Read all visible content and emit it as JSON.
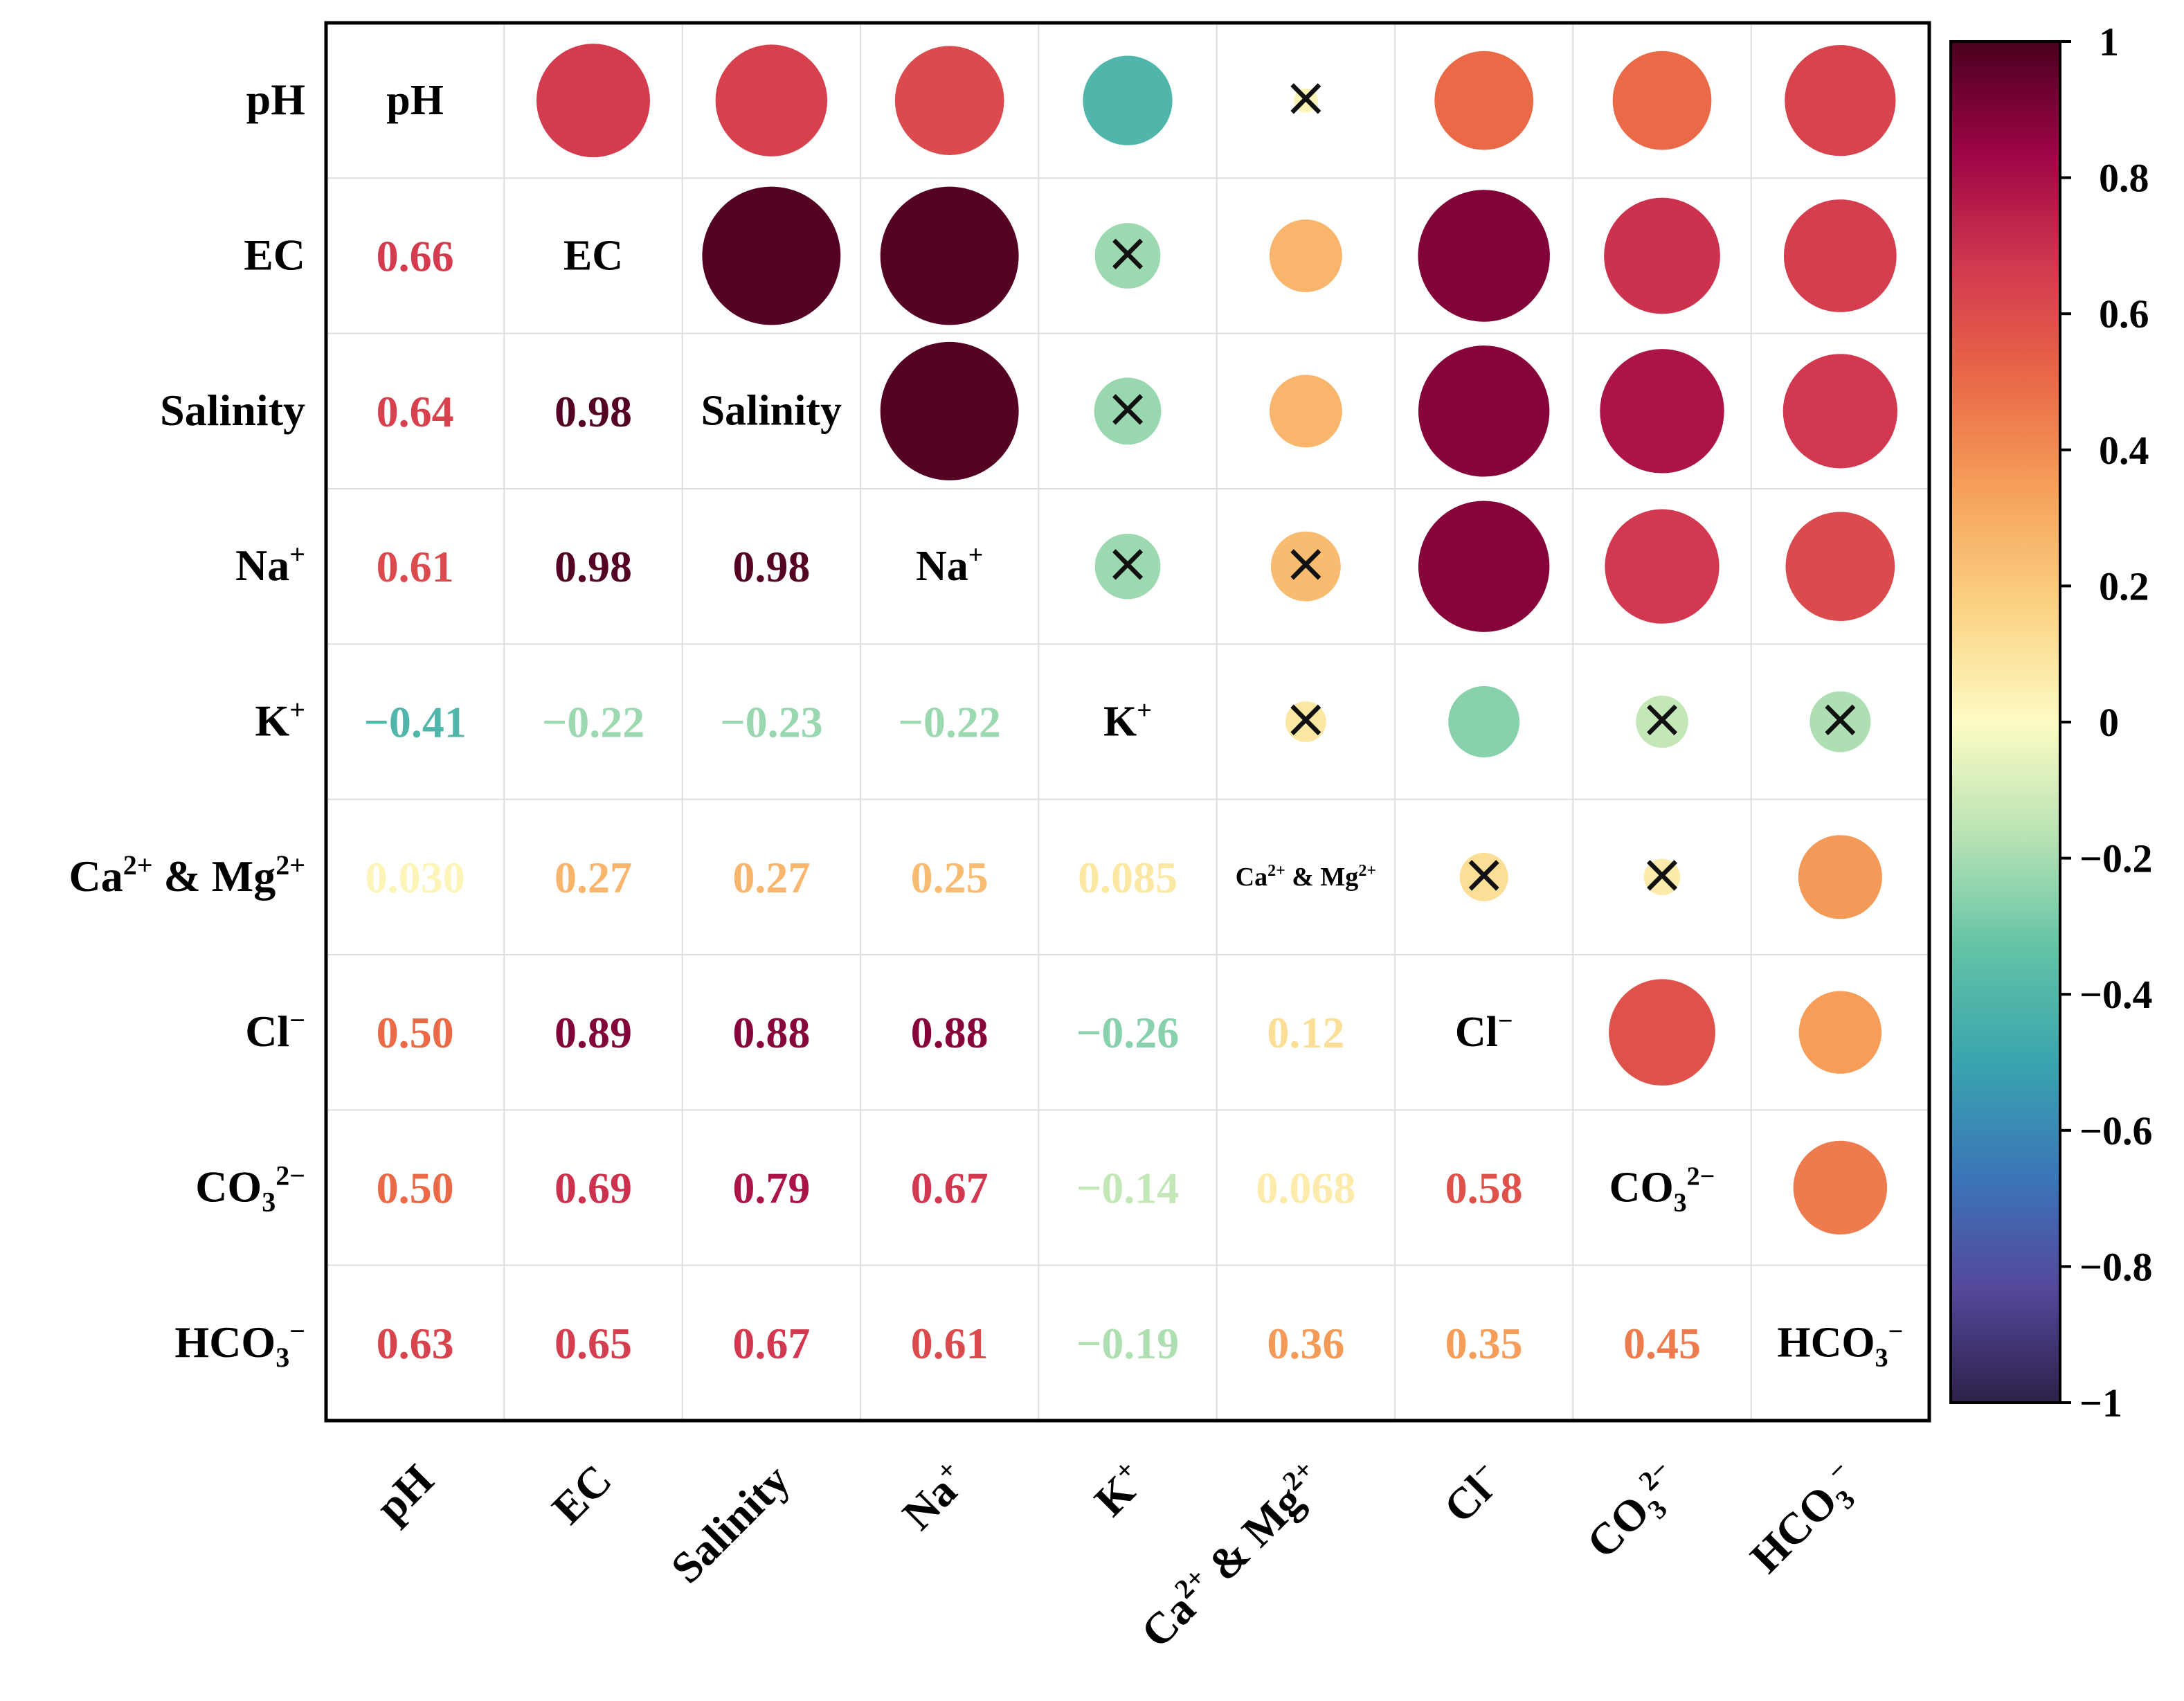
{
  "chart_data": {
    "type": "heatmap",
    "style": "correlation-matrix (lower: coefficients, upper: circles, diagonal: variable names, x = not significant)",
    "variables": [
      {
        "base": "pH",
        "sup": "",
        "sub": "",
        "sub_sup": ""
      },
      {
        "base": "EC",
        "sup": "",
        "sub": "",
        "sub_sup": ""
      },
      {
        "base": "Salinity",
        "sup": "",
        "sub": "",
        "sub_sup": ""
      },
      {
        "base": "Na",
        "sup": "+",
        "sub": "",
        "sub_sup": ""
      },
      {
        "base": "K",
        "sup": "+",
        "sub": "",
        "sub_sup": ""
      },
      {
        "base": "Ca",
        "sup": "2+",
        "mid": " & Mg",
        "sup2": "2+",
        "sub": "",
        "sub_sup": ""
      },
      {
        "base": "Cl",
        "sup": "−",
        "sub": "",
        "sub_sup": ""
      },
      {
        "base": "CO",
        "sup": "",
        "sub": "3",
        "sub_sup": "2−"
      },
      {
        "base": "HCO",
        "sup": "",
        "sub": "3",
        "sub_sup": "−"
      }
    ],
    "matrix": [
      [
        1,
        0.66,
        0.64,
        0.61,
        -0.41,
        0.03,
        0.5,
        0.5,
        0.63
      ],
      [
        0.66,
        1,
        0.98,
        0.98,
        -0.22,
        0.27,
        0.89,
        0.69,
        0.65
      ],
      [
        0.64,
        0.98,
        1,
        0.98,
        -0.23,
        0.27,
        0.88,
        0.79,
        0.67
      ],
      [
        0.61,
        0.98,
        0.98,
        1,
        -0.22,
        0.25,
        0.88,
        0.67,
        0.61
      ],
      [
        -0.41,
        -0.22,
        -0.23,
        -0.22,
        1,
        0.085,
        -0.26,
        -0.14,
        -0.19
      ],
      [
        0.03,
        0.27,
        0.27,
        0.25,
        0.085,
        1,
        0.12,
        0.068,
        0.36
      ],
      [
        0.5,
        0.89,
        0.88,
        0.88,
        -0.26,
        0.12,
        1,
        0.58,
        0.35
      ],
      [
        0.5,
        0.69,
        0.79,
        0.67,
        -0.14,
        0.068,
        0.58,
        1,
        0.45
      ],
      [
        0.63,
        0.65,
        0.67,
        0.61,
        -0.19,
        0.36,
        0.35,
        0.45,
        1
      ]
    ],
    "coefficient_labels": [
      [
        "",
        "",
        "",
        "",
        "",
        "",
        "",
        "",
        ""
      ],
      [
        "0.66",
        "",
        "",
        "",
        "",
        "",
        "",
        "",
        ""
      ],
      [
        "0.64",
        "0.98",
        "",
        "",
        "",
        "",
        "",
        "",
        ""
      ],
      [
        "0.61",
        "0.98",
        "0.98",
        "",
        "",
        "",
        "",
        "",
        ""
      ],
      [
        "−0.41",
        "−0.22",
        "−0.23",
        "−0.22",
        "",
        "",
        "",
        "",
        ""
      ],
      [
        "0.030",
        "0.27",
        "0.27",
        "0.25",
        "0.085",
        "",
        "",
        "",
        ""
      ],
      [
        "0.50",
        "0.89",
        "0.88",
        "0.88",
        "−0.26",
        "0.12",
        "",
        "",
        ""
      ],
      [
        "0.50",
        "0.69",
        "0.79",
        "0.67",
        "−0.14",
        "0.068",
        "0.58",
        "",
        ""
      ],
      [
        "0.63",
        "0.65",
        "0.67",
        "0.61",
        "−0.19",
        "0.36",
        "0.35",
        "0.45",
        ""
      ]
    ],
    "not_significant": [
      [
        0,
        5
      ],
      [
        1,
        4
      ],
      [
        2,
        4
      ],
      [
        3,
        4
      ],
      [
        3,
        5
      ],
      [
        4,
        5
      ],
      [
        4,
        7
      ],
      [
        4,
        8
      ],
      [
        5,
        6
      ],
      [
        5,
        7
      ]
    ],
    "colorbar": {
      "range": [
        -1,
        1
      ],
      "ticks": [
        1,
        0.8,
        0.6,
        0.4,
        0.2,
        0,
        -0.2,
        -0.4,
        -0.6,
        -0.8,
        -1
      ],
      "tick_labels": [
        "1",
        "0.8",
        "0.6",
        "0.4",
        "0.2",
        "0",
        "−0.2",
        "−0.4",
        "−0.6",
        "−0.8",
        "−1"
      ],
      "colormap": "Spectral_r",
      "stops": [
        "#2d2049",
        "#54479a",
        "#3a76b8",
        "#3aa4ae",
        "#62c3a6",
        "#b9e3b4",
        "#fdfbc4",
        "#fbd384",
        "#f6a35b",
        "#ea6a47",
        "#d3394f",
        "#9e0545",
        "#4a001f"
      ]
    },
    "insignificant_marker": "×",
    "title": "",
    "xlabel": "",
    "ylabel": ""
  }
}
